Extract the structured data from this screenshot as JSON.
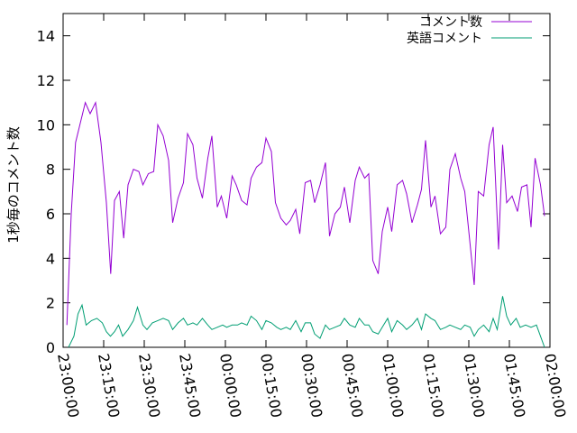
{
  "chart_data": {
    "type": "line",
    "title": "",
    "xlabel": "",
    "ylabel": "1秒毎のコメント数",
    "ylim": [
      0,
      15
    ],
    "yticks": [
      0,
      2,
      4,
      6,
      8,
      10,
      12,
      14
    ],
    "xlim_minutes": [
      0,
      180
    ],
    "xticks": [
      {
        "t": 0,
        "label": "23:00:00"
      },
      {
        "t": 15,
        "label": "23:15:00"
      },
      {
        "t": 30,
        "label": "23:30:00"
      },
      {
        "t": 45,
        "label": "23:45:00"
      },
      {
        "t": 60,
        "label": "00:00:00"
      },
      {
        "t": 75,
        "label": "00:15:00"
      },
      {
        "t": 90,
        "label": "00:30:00"
      },
      {
        "t": 105,
        "label": "00:45:00"
      },
      {
        "t": 120,
        "label": "01:00:00"
      },
      {
        "t": 135,
        "label": "01:15:00"
      },
      {
        "t": 150,
        "label": "01:30:00"
      },
      {
        "t": 165,
        "label": "01:45:00"
      },
      {
        "t": 180,
        "label": "02:00:00"
      }
    ],
    "grid": false,
    "legend_position": "top-right",
    "series": [
      {
        "name": "コメント数",
        "color": "#9400d3",
        "points": [
          [
            1.4,
            1.0
          ],
          [
            3,
            6.0
          ],
          [
            4.6,
            9.2
          ],
          [
            6.4,
            10.1
          ],
          [
            8.2,
            11.0
          ],
          [
            10,
            10.5
          ],
          [
            12,
            11.0
          ],
          [
            14,
            9.2
          ],
          [
            16,
            6.5
          ],
          [
            17.6,
            3.3
          ],
          [
            19,
            6.6
          ],
          [
            20.8,
            7.0
          ],
          [
            22.4,
            4.9
          ],
          [
            24,
            7.3
          ],
          [
            26,
            8.0
          ],
          [
            28,
            7.9
          ],
          [
            29.5,
            7.3
          ],
          [
            31.5,
            7.8
          ],
          [
            33.5,
            7.9
          ],
          [
            35,
            10.0
          ],
          [
            37,
            9.5
          ],
          [
            39,
            8.4
          ],
          [
            40.5,
            5.6
          ],
          [
            42.5,
            6.7
          ],
          [
            44.5,
            7.4
          ],
          [
            46,
            9.6
          ],
          [
            48,
            9.1
          ],
          [
            49.5,
            7.6
          ],
          [
            51.5,
            6.7
          ],
          [
            53.5,
            8.5
          ],
          [
            55,
            9.5
          ],
          [
            57,
            6.3
          ],
          [
            58.5,
            6.8
          ],
          [
            60.5,
            5.8
          ],
          [
            62.5,
            7.7
          ],
          [
            64,
            7.3
          ],
          [
            66,
            6.6
          ],
          [
            68,
            6.4
          ],
          [
            69.5,
            7.6
          ],
          [
            71.5,
            8.1
          ],
          [
            73.5,
            8.3
          ],
          [
            75,
            9.4
          ],
          [
            77,
            8.8
          ],
          [
            78.5,
            6.5
          ],
          [
            80.5,
            5.8
          ],
          [
            82.5,
            5.5
          ],
          [
            84,
            5.7
          ],
          [
            86,
            6.2
          ],
          [
            87.5,
            5.1
          ],
          [
            89.5,
            7.4
          ],
          [
            91.5,
            7.5
          ],
          [
            93,
            6.5
          ],
          [
            95,
            7.3
          ],
          [
            97,
            8.3
          ],
          [
            98.5,
            5.0
          ],
          [
            100.5,
            6.0
          ],
          [
            102.5,
            6.3
          ],
          [
            104,
            7.2
          ],
          [
            106,
            5.6
          ],
          [
            108,
            7.5
          ],
          [
            109.5,
            8.1
          ],
          [
            111.5,
            7.6
          ],
          [
            113,
            7.8
          ],
          [
            114.5,
            3.9
          ],
          [
            116.5,
            3.3
          ],
          [
            118,
            5.2
          ],
          [
            120,
            6.3
          ],
          [
            121.5,
            5.2
          ],
          [
            123.5,
            7.3
          ],
          [
            125.5,
            7.5
          ],
          [
            127,
            6.9
          ],
          [
            129,
            5.6
          ],
          [
            131,
            6.4
          ],
          [
            132.5,
            7.1
          ],
          [
            134,
            9.3
          ],
          [
            136,
            6.3
          ],
          [
            137.5,
            6.8
          ],
          [
            139.5,
            5.1
          ],
          [
            141.5,
            5.4
          ],
          [
            143,
            8.0
          ],
          [
            145,
            8.7
          ],
          [
            147,
            7.6
          ],
          [
            148.5,
            7.0
          ],
          [
            150.5,
            4.6
          ],
          [
            152,
            2.8
          ],
          [
            153.5,
            7.0
          ],
          [
            155.5,
            6.8
          ],
          [
            157.5,
            9.1
          ],
          [
            159,
            9.9
          ],
          [
            161,
            4.4
          ],
          [
            162.5,
            9.1
          ],
          [
            164,
            6.5
          ],
          [
            166,
            6.8
          ],
          [
            168,
            6.1
          ],
          [
            169.5,
            7.2
          ],
          [
            171.5,
            7.3
          ],
          [
            173,
            5.4
          ],
          [
            174.5,
            8.5
          ],
          [
            176.5,
            7.3
          ],
          [
            178,
            5.9
          ]
        ]
      },
      {
        "name": "英語コメント",
        "color": "#009e73",
        "points": [
          [
            2,
            0.0
          ],
          [
            4,
            0.5
          ],
          [
            5.5,
            1.5
          ],
          [
            7,
            1.9
          ],
          [
            8.5,
            1.0
          ],
          [
            10.5,
            1.2
          ],
          [
            12.5,
            1.3
          ],
          [
            14.5,
            1.1
          ],
          [
            16,
            0.7
          ],
          [
            17.5,
            0.5
          ],
          [
            19,
            0.7
          ],
          [
            20.5,
            1.0
          ],
          [
            22,
            0.5
          ],
          [
            24,
            0.8
          ],
          [
            26,
            1.2
          ],
          [
            27.5,
            1.8
          ],
          [
            29.5,
            1.0
          ],
          [
            31,
            0.8
          ],
          [
            33,
            1.1
          ],
          [
            35,
            1.2
          ],
          [
            37,
            1.3
          ],
          [
            39,
            1.2
          ],
          [
            40.5,
            0.8
          ],
          [
            42.5,
            1.1
          ],
          [
            44.5,
            1.3
          ],
          [
            46,
            1.0
          ],
          [
            48,
            1.1
          ],
          [
            49.5,
            1.0
          ],
          [
            51.5,
            1.3
          ],
          [
            53.5,
            1.0
          ],
          [
            55,
            0.8
          ],
          [
            57,
            0.9
          ],
          [
            59,
            1.0
          ],
          [
            60.5,
            0.9
          ],
          [
            62.5,
            1.0
          ],
          [
            64.5,
            1.0
          ],
          [
            66,
            1.1
          ],
          [
            68,
            1.0
          ],
          [
            69.5,
            1.4
          ],
          [
            71.5,
            1.2
          ],
          [
            73.5,
            0.8
          ],
          [
            75,
            1.2
          ],
          [
            77,
            1.1
          ],
          [
            79,
            0.9
          ],
          [
            80.5,
            0.8
          ],
          [
            82.5,
            0.9
          ],
          [
            84,
            0.8
          ],
          [
            86,
            1.2
          ],
          [
            88,
            0.7
          ],
          [
            89.5,
            1.1
          ],
          [
            91.5,
            1.1
          ],
          [
            93,
            0.6
          ],
          [
            95,
            0.4
          ],
          [
            97,
            1.0
          ],
          [
            98.5,
            0.8
          ],
          [
            100.5,
            0.9
          ],
          [
            102.5,
            1.0
          ],
          [
            104,
            1.3
          ],
          [
            106,
            1.0
          ],
          [
            108,
            0.9
          ],
          [
            109.5,
            1.3
          ],
          [
            111.5,
            1.0
          ],
          [
            113,
            1.0
          ],
          [
            114.5,
            0.7
          ],
          [
            116.5,
            0.6
          ],
          [
            118,
            0.9
          ],
          [
            120,
            1.3
          ],
          [
            121.5,
            0.7
          ],
          [
            123.5,
            1.2
          ],
          [
            125.5,
            1.0
          ],
          [
            127,
            0.8
          ],
          [
            129,
            1.0
          ],
          [
            131,
            1.3
          ],
          [
            132.5,
            0.8
          ],
          [
            134,
            1.5
          ],
          [
            136,
            1.3
          ],
          [
            137.5,
            1.2
          ],
          [
            139.5,
            0.8
          ],
          [
            141.5,
            0.9
          ],
          [
            143,
            1.0
          ],
          [
            145,
            0.9
          ],
          [
            147,
            0.8
          ],
          [
            148.5,
            1.0
          ],
          [
            150.5,
            0.9
          ],
          [
            152,
            0.5
          ],
          [
            153.5,
            0.8
          ],
          [
            155.5,
            1.0
          ],
          [
            157.5,
            0.7
          ],
          [
            159,
            1.3
          ],
          [
            160.5,
            0.8
          ],
          [
            162.5,
            2.3
          ],
          [
            164,
            1.4
          ],
          [
            165.5,
            1.0
          ],
          [
            167.5,
            1.3
          ],
          [
            169,
            0.9
          ],
          [
            171,
            1.0
          ],
          [
            173,
            0.9
          ],
          [
            175,
            1.0
          ],
          [
            176.5,
            0.5
          ],
          [
            178,
            0.0
          ]
        ]
      }
    ]
  }
}
